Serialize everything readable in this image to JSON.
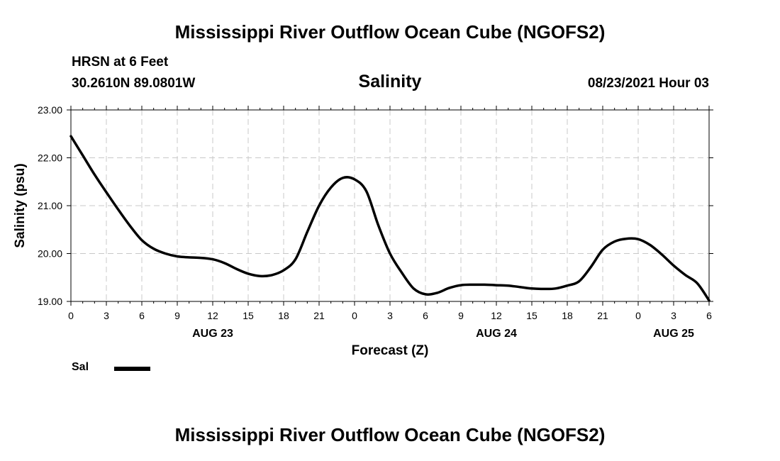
{
  "header": {
    "title": "Mississippi River Outflow Ocean Cube (NGOFS2)",
    "station": "HRSN at 6 Feet",
    "coords": "30.2610N  89.0801W",
    "subtitle": "Salinity",
    "datetime": "08/23/2021 Hour 03"
  },
  "footer": {
    "title": "Mississippi River Outflow Ocean Cube (NGOFS2)"
  },
  "chart_data": {
    "type": "line",
    "title": "Salinity",
    "xlabel": "Forecast (Z)",
    "ylabel": "Salinity (psu)",
    "ylim": [
      19.0,
      23.0
    ],
    "xlim": [
      0,
      54
    ],
    "grid": true,
    "yticks": [
      "19.00",
      "20.00",
      "21.00",
      "22.00",
      "23.00"
    ],
    "xticks": [
      "0",
      "3",
      "6",
      "9",
      "12",
      "15",
      "18",
      "21",
      "0",
      "3",
      "6",
      "9",
      "12",
      "15",
      "18",
      "21",
      "0",
      "3",
      "6"
    ],
    "date_labels": [
      {
        "label": "AUG 23",
        "hour": 12
      },
      {
        "label": "AUG 24",
        "hour": 36
      },
      {
        "label": "AUG 25",
        "hour": 51
      }
    ],
    "legend": {
      "position": "bottom-left",
      "entries": [
        "Sal"
      ]
    },
    "series": [
      {
        "name": "Sal",
        "x": [
          0,
          1,
          2,
          3,
          4,
          5,
          6,
          7,
          8,
          9,
          10,
          11,
          12,
          13,
          14,
          15,
          16,
          17,
          18,
          19,
          20,
          21,
          22,
          23,
          24,
          25,
          26,
          27,
          28,
          29,
          30,
          31,
          32,
          33,
          34,
          35,
          36,
          37,
          38,
          39,
          40,
          41,
          42,
          43,
          44,
          45,
          46,
          47,
          48,
          49,
          50,
          51,
          52,
          53,
          54
        ],
        "values": [
          22.45,
          22.05,
          21.65,
          21.28,
          20.92,
          20.58,
          20.28,
          20.1,
          20.0,
          19.94,
          19.92,
          19.91,
          19.88,
          19.8,
          19.68,
          19.58,
          19.53,
          19.55,
          19.65,
          19.88,
          20.45,
          21.0,
          21.38,
          21.58,
          21.55,
          21.3,
          20.6,
          20.0,
          19.6,
          19.27,
          19.15,
          19.18,
          19.28,
          19.34,
          19.35,
          19.35,
          19.34,
          19.33,
          19.3,
          19.27,
          19.26,
          19.27,
          19.33,
          19.42,
          19.72,
          20.08,
          20.25,
          20.31,
          20.3,
          20.18,
          19.98,
          19.75,
          19.55,
          19.38,
          19.02
        ]
      }
    ]
  }
}
